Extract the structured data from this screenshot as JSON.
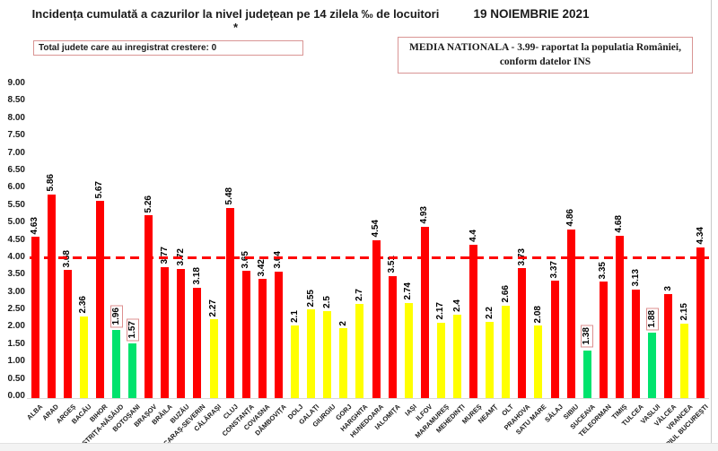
{
  "header": {
    "title": "Incidența cumulată a cazurilor la nivel județean pe 14 zilela ‰ de locuitori *",
    "date": "19 NOIEMBRIE 2021",
    "growth_box_text": "Total judete care au inregistrat crestere: 0",
    "media_box_line1": "MEDIA NATIONALA  - 3.99-  raportat la populatia României,",
    "media_box_line2": "conform datelor INS"
  },
  "chart_data": {
    "type": "bar",
    "title": "Incidența cumulată a cazurilor la nivel județean pe 14 zilela ‰ de locuitori *",
    "xlabel": "",
    "ylabel": "‰ de locuitori",
    "ylim": [
      0,
      9
    ],
    "ytick_step": 0.5,
    "grid": false,
    "legend_position": "none",
    "reference_line": {
      "value": 3.99,
      "style": "dashed",
      "color": "#ff0000",
      "meaning": "media nationala"
    },
    "status_colors": {
      "red": "#ff0000",
      "yellow": "#ffff00",
      "green": "#00e36d"
    },
    "boxed_label_border": "#dd8f8f",
    "categories": [
      "ALBA",
      "ARAD",
      "ARGEȘ",
      "BACĂU",
      "BIHOR",
      "BISTRIȚA-NĂSĂUD",
      "BOTOȘANI",
      "BRAȘOV",
      "BRĂILA",
      "BUZĂU",
      "CARAȘ-SEVERIN",
      "CĂLĂRAȘI",
      "CLUJ",
      "CONSTANȚA",
      "COVASNA",
      "DÂMBOVIȚA",
      "DOLJ",
      "GALAȚI",
      "GIURGIU",
      "GORJ",
      "HARGHITA",
      "HUNEDOARA",
      "IALOMIȚA",
      "IAȘI",
      "ILFOV",
      "MARAMUREȘ",
      "MEHEDINȚI",
      "MUREȘ",
      "NEAMȚ",
      "OLT",
      "PRAHOVA",
      "SATU MARE",
      "SĂLAJ",
      "SIBIU",
      "SUCEAVA",
      "TELEORMAN",
      "TIMIȘ",
      "TULCEA",
      "VASLUI",
      "VÂLCEA",
      "VRANCEA",
      "MUNICIPIUL BUCUREȘTI"
    ],
    "values": [
      4.63,
      5.86,
      3.68,
      2.36,
      5.67,
      1.96,
      1.57,
      5.26,
      3.77,
      3.72,
      3.18,
      2.27,
      5.48,
      3.65,
      3.42,
      3.64,
      2.1,
      2.55,
      2.5,
      2,
      2.7,
      4.54,
      3.51,
      2.74,
      4.93,
      2.17,
      2.4,
      4.4,
      2.2,
      2.66,
      3.73,
      2.08,
      3.37,
      4.86,
      1.38,
      3.35,
      4.68,
      3.13,
      1.88,
      3,
      2.15,
      4.34
    ],
    "colors": [
      "red",
      "red",
      "red",
      "yellow",
      "red",
      "green",
      "green",
      "red",
      "red",
      "red",
      "red",
      "yellow",
      "red",
      "red",
      "red",
      "red",
      "yellow",
      "yellow",
      "yellow",
      "yellow",
      "yellow",
      "red",
      "red",
      "yellow",
      "red",
      "yellow",
      "yellow",
      "red",
      "yellow",
      "yellow",
      "red",
      "yellow",
      "red",
      "red",
      "green",
      "red",
      "red",
      "red",
      "green",
      "red",
      "yellow",
      "red"
    ],
    "boxed_labels": [
      "BISTRIȚA-NĂSĂUD",
      "BOTOȘANI",
      "SUCEAVA",
      "VASLUI"
    ]
  }
}
